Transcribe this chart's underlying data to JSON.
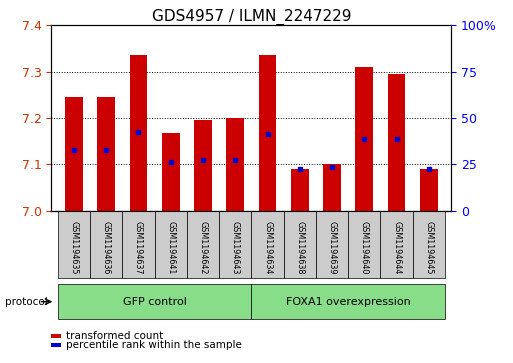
{
  "title": "GDS4957 / ILMN_2247229",
  "samples": [
    "GSM1194635",
    "GSM1194636",
    "GSM1194637",
    "GSM1194641",
    "GSM1194642",
    "GSM1194643",
    "GSM1194634",
    "GSM1194638",
    "GSM1194639",
    "GSM1194640",
    "GSM1194644",
    "GSM1194645"
  ],
  "bar_tops": [
    7.245,
    7.245,
    7.335,
    7.168,
    7.195,
    7.2,
    7.335,
    7.09,
    7.1,
    7.31,
    7.295,
    7.09
  ],
  "blue_positions": [
    7.13,
    7.13,
    7.17,
    7.105,
    7.11,
    7.11,
    7.165,
    7.09,
    7.095,
    7.155,
    7.155,
    7.09
  ],
  "bar_bottom": 7.0,
  "ylim": [
    7.0,
    7.4
  ],
  "yticks": [
    7.0,
    7.1,
    7.2,
    7.3,
    7.4
  ],
  "right_yticks": [
    0,
    25,
    50,
    75,
    100
  ],
  "bar_color": "#CC0000",
  "blue_color": "#0000CC",
  "bg_color": "#FFFFFF",
  "plot_bg": "#FFFFFF",
  "left_tick_color": "#CC3300",
  "group1_label": "GFP control",
  "group2_label": "FOXA1 overexpression",
  "group1_count": 6,
  "group2_count": 6,
  "group_color": "#88DD88",
  "sample_bg": "#CCCCCC",
  "legend_red_label": "transformed count",
  "legend_blue_label": "percentile rank within the sample",
  "protocol_label": "protocol",
  "bar_width": 0.55,
  "title_fontsize": 11,
  "right_pct_label": "100%"
}
